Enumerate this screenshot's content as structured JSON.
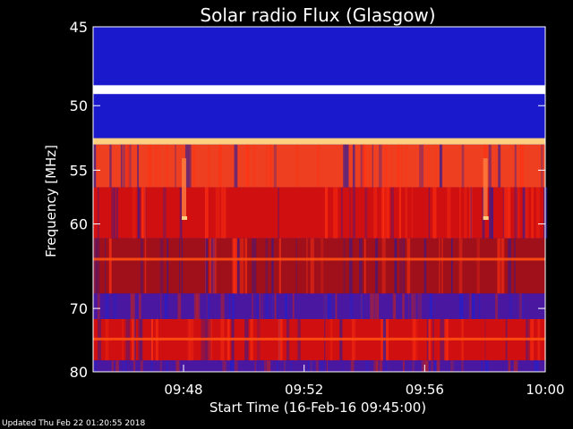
{
  "chart_data": {
    "type": "heatmap",
    "title": "Solar radio Flux (Glasgow)",
    "xlabel": "Start Time (16-Feb-16 09:45:00)",
    "ylabel": "Frequency [MHz]",
    "x_unit": "time (HH:MM, 16-Feb-16)",
    "xlim": [
      "09:45",
      "10:00"
    ],
    "ylim": [
      45,
      80
    ],
    "y_scale": "reciprocal (frequency increases downward, compressed toward high end)",
    "x_ticks": [
      "09:48",
      "09:52",
      "09:56",
      "10:00"
    ],
    "y_ticks": [
      45,
      50,
      55,
      60,
      70,
      80
    ],
    "grid": false,
    "colors": {
      "background": "#000000",
      "low": "#1a1acc",
      "mid": "#d01010",
      "high": "#ffd080",
      "peak": "#ffffff"
    },
    "bands": [
      {
        "from": 44.2,
        "to": 45.6,
        "intensity": "low"
      },
      {
        "from": 45.6,
        "to": 48.6,
        "intensity": "low"
      },
      {
        "from": 48.6,
        "to": 49.2,
        "intensity": "peak"
      },
      {
        "from": 49.2,
        "to": 52.4,
        "intensity": "low"
      },
      {
        "from": 52.4,
        "to": 52.9,
        "intensity": "high"
      },
      {
        "from": 52.9,
        "to": 56.5,
        "intensity": "high-mid"
      },
      {
        "from": 56.5,
        "to": 61.5,
        "intensity": "mid"
      },
      {
        "from": 61.5,
        "to": 68.0,
        "intensity": "mixed"
      },
      {
        "from": 68.0,
        "to": 71.5,
        "intensity": "low-mixed"
      },
      {
        "from": 71.5,
        "to": 78.0,
        "intensity": "mid"
      },
      {
        "from": 78.0,
        "to": 80.3,
        "intensity": "low-mixed"
      }
    ],
    "features": [
      {
        "type": "vertical-burst",
        "time": "09:48",
        "freq_range": [
          54,
          59.5
        ]
      },
      {
        "type": "vertical-burst",
        "time": "09:58",
        "freq_range": [
          54,
          59.5
        ]
      },
      {
        "type": "horizontal-line",
        "freq": 63.8
      },
      {
        "type": "horizontal-line",
        "freq": 74.5
      }
    ]
  },
  "footer": {
    "updated": "Updated Thu Feb 22 01:20:55 2018"
  }
}
